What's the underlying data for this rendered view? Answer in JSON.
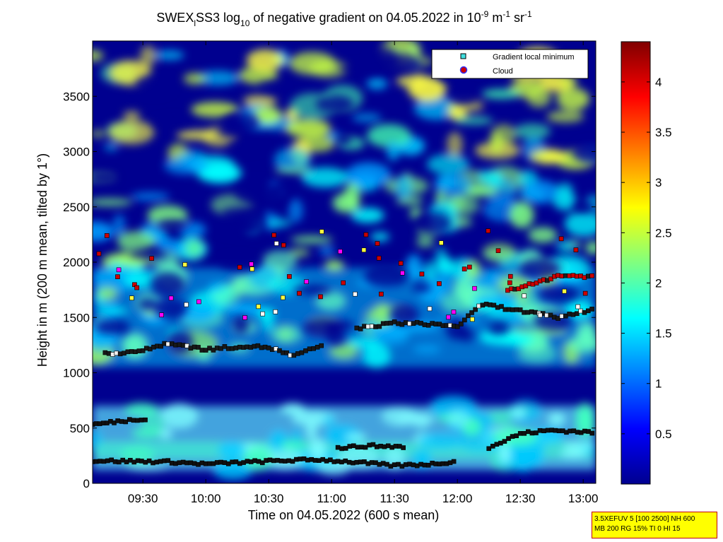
{
  "chart_data": {
    "type": "heatmap",
    "title": {
      "p1": "SWEX",
      "p1_sub": "l",
      "p2": "SS3 log",
      "p2_sub": "10",
      "p3": " of negative gradient on 04.05.2022 in 10",
      "p3_sup": "-9",
      "p4": " m",
      "p4_sup": "-1",
      "p5": " sr",
      "p5_sup": "-1"
    },
    "xlabel": "Time on 04.05.2022 (600 s mean)",
    "ylabel": "Height in m (200 m mean, tilted by 1°)",
    "xlim_hours": [
      9.1,
      13.1
    ],
    "ylim": [
      0,
      4000
    ],
    "x_ticks": [
      {
        "t": 9.5,
        "label": "09:30"
      },
      {
        "t": 10.0,
        "label": "10:00"
      },
      {
        "t": 10.5,
        "label": "10:30"
      },
      {
        "t": 11.0,
        "label": "11:00"
      },
      {
        "t": 11.5,
        "label": "11:30"
      },
      {
        "t": 12.0,
        "label": "12:00"
      },
      {
        "t": 12.5,
        "label": "12:30"
      },
      {
        "t": 13.0,
        "label": "13:00"
      }
    ],
    "y_ticks": [
      0,
      500,
      1000,
      1500,
      2000,
      2500,
      3000,
      3500
    ],
    "colorbar": {
      "range": [
        0,
        4.4
      ],
      "ticks": [
        "0.5",
        "1",
        "1.5",
        "2",
        "2.5",
        "3",
        "3.5",
        "4"
      ],
      "colormap": "jet"
    },
    "legend": {
      "position": "top-right",
      "entries": [
        "Gradient local minimum",
        "Cloud"
      ]
    },
    "colors": {
      "gradient_min": "#40e0e0",
      "cloud": "#cc0000",
      "background": "#00008f"
    },
    "series": [
      {
        "label": "gradient-min-low-layer",
        "t": [
          9.1,
          9.4,
          9.7,
          10.0,
          10.3,
          10.6,
          10.9,
          11.2,
          11.5,
          11.8,
          12.0
        ],
        "h": [
          205,
          200,
          195,
          175,
          190,
          205,
          215,
          190,
          160,
          175,
          200
        ]
      },
      {
        "label": "gradient-min-secondary-low",
        "t": [
          11.05,
          11.3,
          11.6
        ],
        "h": [
          320,
          340,
          330
        ]
      },
      {
        "label": "gradient-min-boundary-layer",
        "t": [
          9.1,
          9.3,
          9.55
        ],
        "h": [
          530,
          560,
          590
        ]
      },
      {
        "label": "gradient-min-right-low",
        "t": [
          12.25,
          12.5,
          12.75,
          13.1
        ],
        "h": [
          320,
          450,
          480,
          460
        ]
      },
      {
        "label": "gradient-min-mid-layer",
        "t": [
          9.2,
          9.5,
          9.7,
          10.0,
          10.3,
          10.5,
          10.7,
          10.95
        ],
        "h": [
          1170,
          1200,
          1270,
          1210,
          1240,
          1230,
          1150,
          1260
        ]
      },
      {
        "label": "gradient-min-upper-layer",
        "t": [
          11.2,
          11.5,
          11.8,
          12.0,
          12.2,
          12.5,
          12.8,
          13.1
        ],
        "h": [
          1400,
          1450,
          1440,
          1420,
          1620,
          1560,
          1500,
          1580
        ]
      },
      {
        "label": "cloud-band",
        "t": [
          12.4,
          12.6,
          12.8,
          13.1
        ],
        "h": [
          1750,
          1800,
          1880,
          1870
        ]
      }
    ]
  },
  "infobox": {
    "line1": "3.5XEFUV 5 [100 2500] NH 600",
    "line2": "MB 200 RG 15% TI 0 HI 15"
  }
}
